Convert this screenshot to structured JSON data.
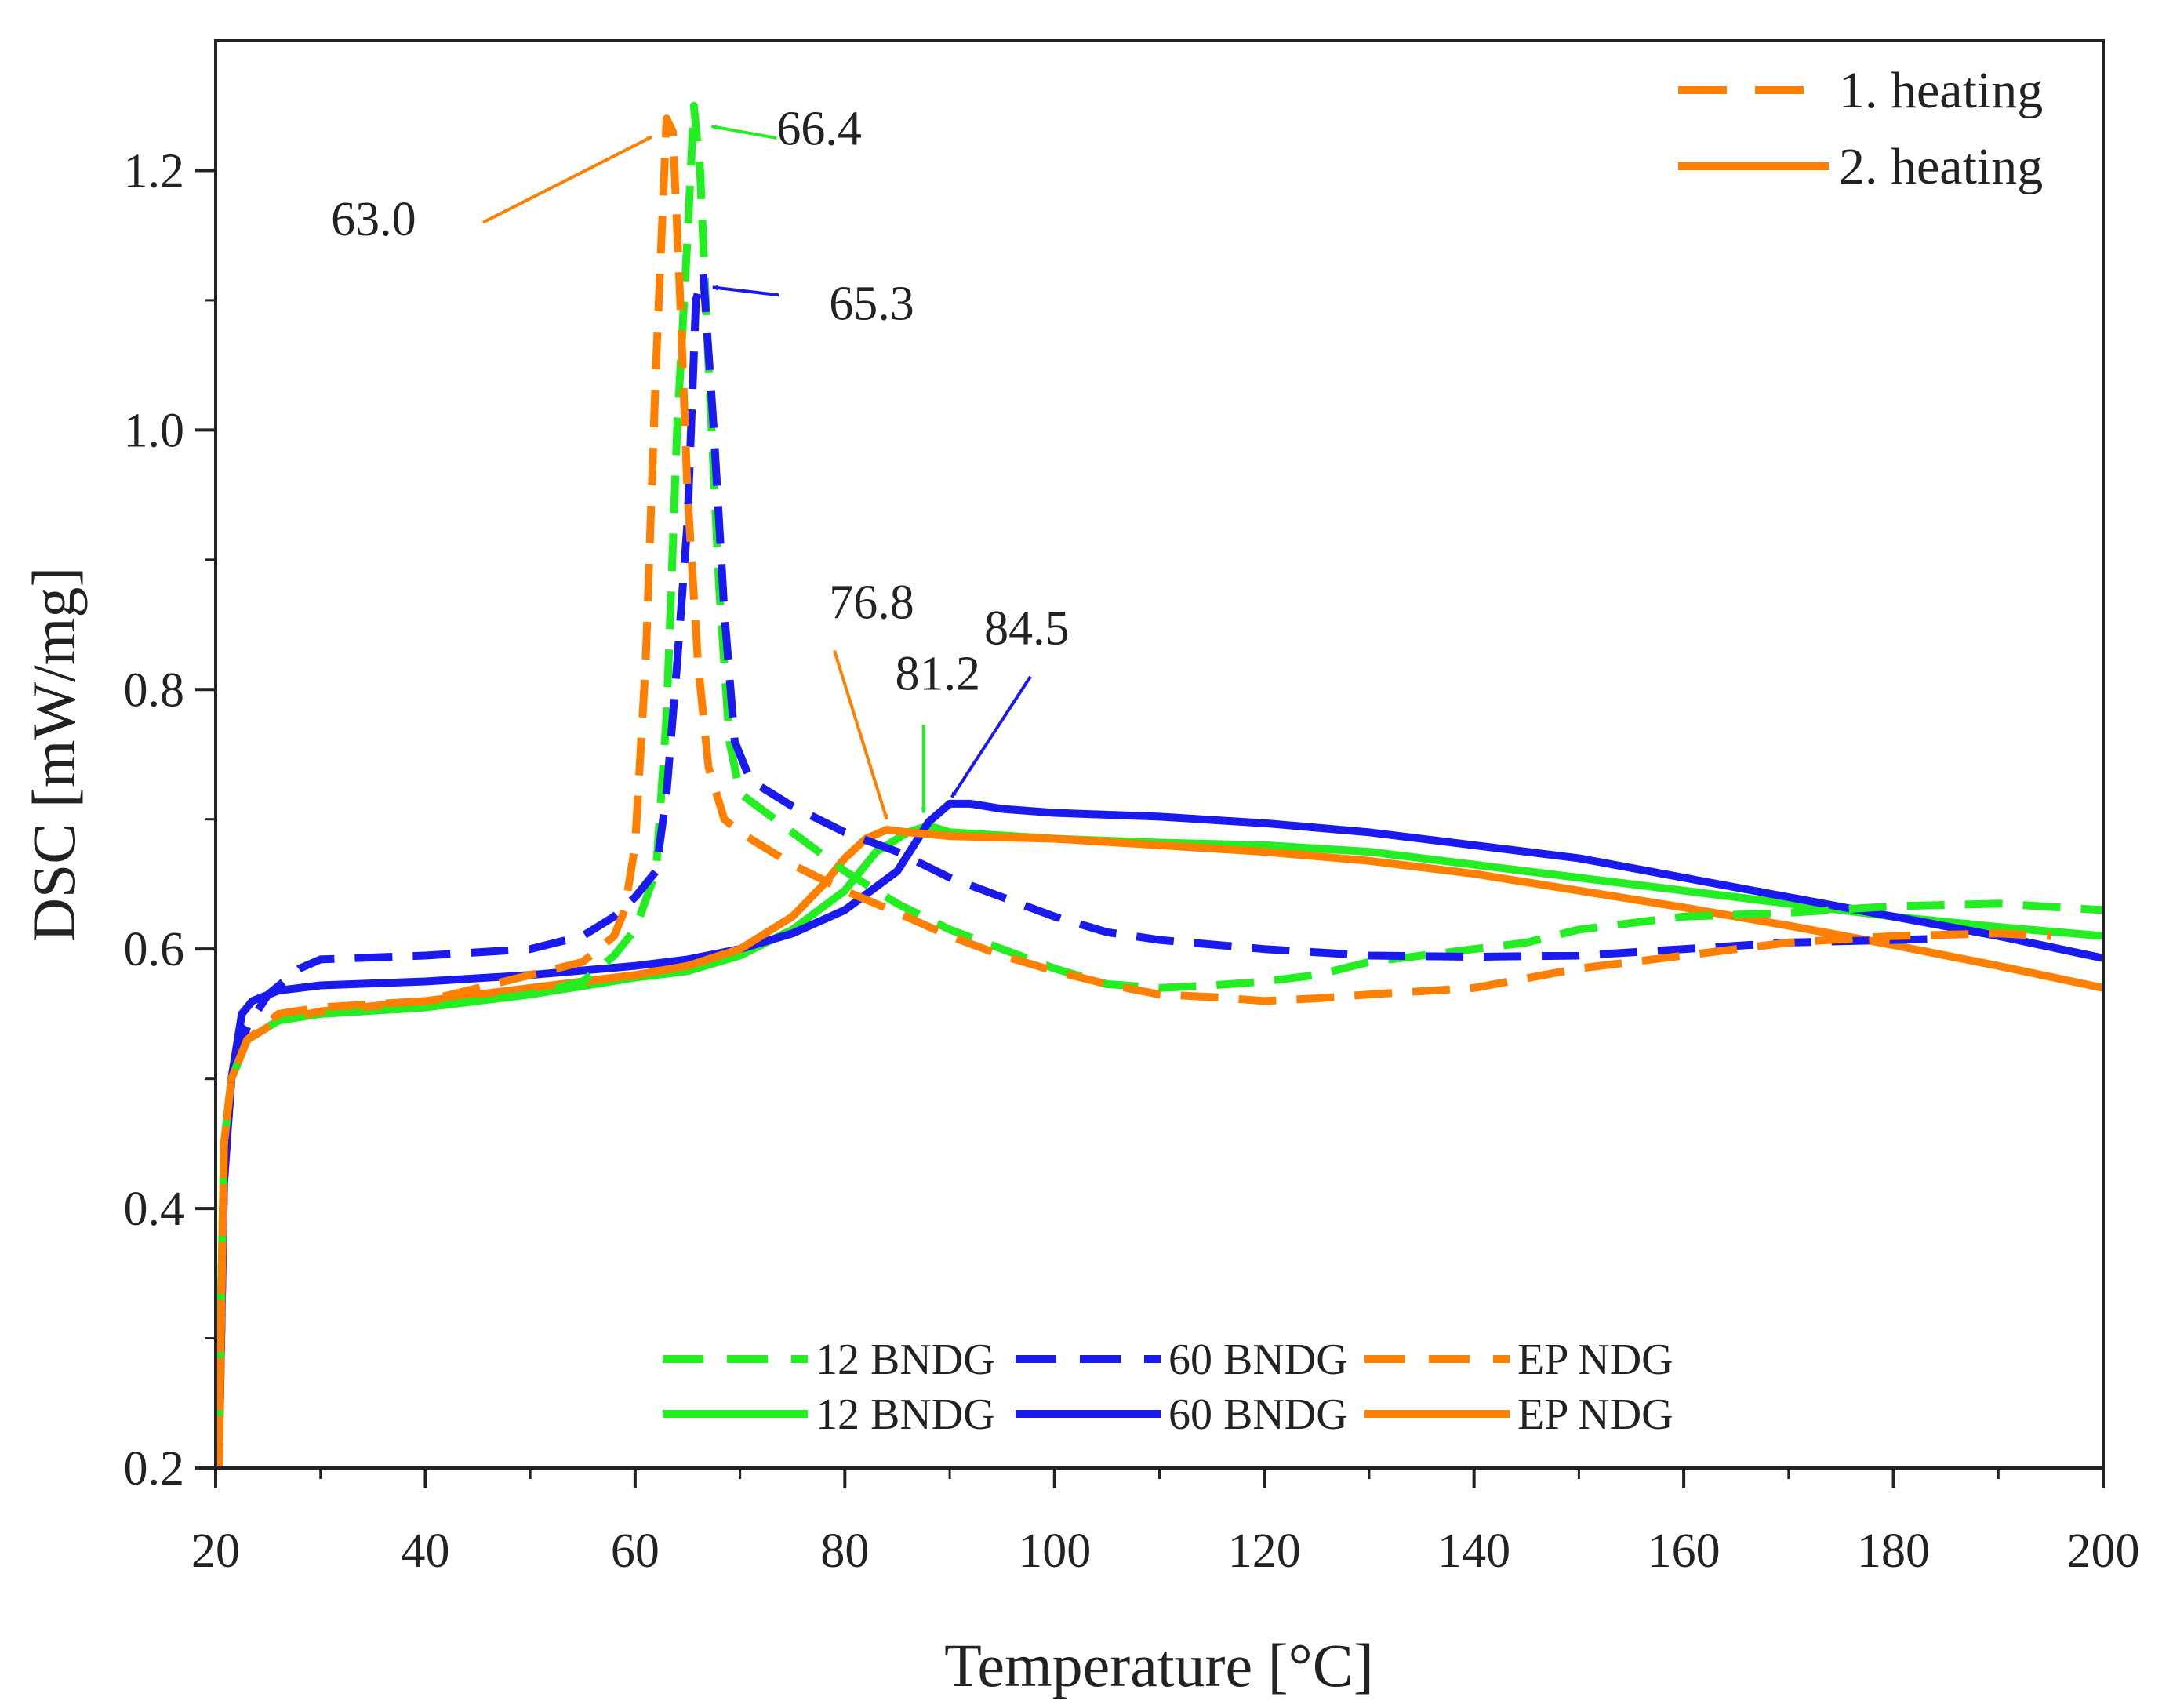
{
  "chart_data": {
    "type": "line",
    "title": "",
    "xlabel": "Temperature [°C]",
    "ylabel": "DSC [mW/mg]",
    "xlim": [
      20,
      200
    ],
    "ylim": [
      0.2,
      1.3
    ],
    "x_ticks": [
      20,
      40,
      60,
      80,
      100,
      120,
      140,
      160,
      180,
      200
    ],
    "x_tick_labels": [
      "20",
      "40",
      "60",
      "80",
      "100",
      "120",
      "140",
      "160",
      "180",
      "200"
    ],
    "y_ticks": [
      0.2,
      0.4,
      0.6,
      0.8,
      1.0,
      1.2
    ],
    "y_tick_labels": [
      "0.2",
      "0.4",
      "0.6",
      "0.8",
      "1.0",
      "1.2"
    ],
    "grid": false,
    "style_legend": {
      "placement": "top-right",
      "items": [
        {
          "label": "1. heating",
          "dash": "dashed",
          "color": "#ff8000"
        },
        {
          "label": "2. heating",
          "dash": "solid",
          "color": "#ff8000"
        }
      ]
    },
    "series_legend": {
      "placement": "bottom-center",
      "rows": [
        [
          "12 BNDG",
          "60 BNDG",
          "EP NDG"
        ],
        [
          "12 BNDG",
          "60 BNDG",
          "EP NDG"
        ]
      ]
    },
    "series": [
      {
        "name": "12 BNDG",
        "heating": "1. heating",
        "color": "#22ee22",
        "dash": "dashed",
        "points": [
          [
            20.3,
            0.24
          ],
          [
            20.8,
            0.45
          ],
          [
            21.5,
            0.5
          ],
          [
            23,
            0.53
          ],
          [
            26,
            0.545
          ],
          [
            30,
            0.55
          ],
          [
            40,
            0.555
          ],
          [
            50,
            0.565
          ],
          [
            55,
            0.575
          ],
          [
            58,
            0.595
          ],
          [
            60,
            0.615
          ],
          [
            62,
            0.66
          ],
          [
            63,
            0.78
          ],
          [
            64,
            1.0
          ],
          [
            65,
            1.15
          ],
          [
            65.6,
            1.25
          ],
          [
            66.2,
            1.2
          ],
          [
            67,
            1.05
          ],
          [
            68,
            0.88
          ],
          [
            69,
            0.76
          ],
          [
            70,
            0.72
          ],
          [
            75,
            0.69
          ],
          [
            80,
            0.66
          ],
          [
            85,
            0.635
          ],
          [
            90,
            0.615
          ],
          [
            95,
            0.6
          ],
          [
            100,
            0.585
          ],
          [
            105,
            0.573
          ],
          [
            110,
            0.57
          ],
          [
            115,
            0.572
          ],
          [
            120,
            0.575
          ],
          [
            125,
            0.58
          ],
          [
            130,
            0.59
          ],
          [
            135,
            0.595
          ],
          [
            140,
            0.6
          ],
          [
            145,
            0.605
          ],
          [
            150,
            0.615
          ],
          [
            155,
            0.62
          ],
          [
            160,
            0.625
          ],
          [
            170,
            0.628
          ],
          [
            180,
            0.633
          ],
          [
            190,
            0.635
          ],
          [
            200,
            0.63
          ]
        ]
      },
      {
        "name": "60 BNDG",
        "heating": "1. heating",
        "color": "#1a1aee",
        "dash": "dashed",
        "points": [
          [
            20.3,
            0.2
          ],
          [
            20.8,
            0.42
          ],
          [
            21.5,
            0.5
          ],
          [
            23,
            0.54
          ],
          [
            25,
            0.565
          ],
          [
            28,
            0.585
          ],
          [
            30,
            0.592
          ],
          [
            40,
            0.595
          ],
          [
            50,
            0.6
          ],
          [
            55,
            0.61
          ],
          [
            58,
            0.625
          ],
          [
            60,
            0.64
          ],
          [
            62,
            0.66
          ],
          [
            63,
            0.72
          ],
          [
            64,
            0.82
          ],
          [
            65,
            0.93
          ],
          [
            65.8,
            1.1
          ],
          [
            66.5,
            1.12
          ],
          [
            67.5,
            1.0
          ],
          [
            68.5,
            0.86
          ],
          [
            69.5,
            0.76
          ],
          [
            71,
            0.73
          ],
          [
            75,
            0.71
          ],
          [
            80,
            0.69
          ],
          [
            85,
            0.675
          ],
          [
            90,
            0.655
          ],
          [
            95,
            0.64
          ],
          [
            100,
            0.625
          ],
          [
            105,
            0.613
          ],
          [
            110,
            0.607
          ],
          [
            120,
            0.6
          ],
          [
            130,
            0.595
          ],
          [
            140,
            0.594
          ],
          [
            150,
            0.595
          ],
          [
            160,
            0.6
          ],
          [
            170,
            0.605
          ],
          [
            180,
            0.607
          ],
          [
            185,
            0.608
          ]
        ]
      },
      {
        "name": "EP NDG",
        "heating": "1. heating",
        "color": "#ff8000",
        "dash": "dashed",
        "points": [
          [
            20.3,
            0.2
          ],
          [
            20.8,
            0.45
          ],
          [
            21.5,
            0.5
          ],
          [
            23,
            0.53
          ],
          [
            26,
            0.55
          ],
          [
            30,
            0.555
          ],
          [
            40,
            0.56
          ],
          [
            50,
            0.58
          ],
          [
            55,
            0.59
          ],
          [
            58,
            0.61
          ],
          [
            59,
            0.63
          ],
          [
            60,
            0.68
          ],
          [
            61,
            0.82
          ],
          [
            62,
            1.05
          ],
          [
            63,
            1.24
          ],
          [
            63.6,
            1.23
          ],
          [
            64.3,
            1.1
          ],
          [
            65,
            0.95
          ],
          [
            66,
            0.82
          ],
          [
            67,
            0.74
          ],
          [
            68.5,
            0.7
          ],
          [
            70,
            0.69
          ],
          [
            75,
            0.665
          ],
          [
            80,
            0.645
          ],
          [
            85,
            0.628
          ],
          [
            90,
            0.61
          ],
          [
            95,
            0.595
          ],
          [
            100,
            0.583
          ],
          [
            105,
            0.573
          ],
          [
            110,
            0.565
          ],
          [
            115,
            0.563
          ],
          [
            120,
            0.56
          ],
          [
            125,
            0.562
          ],
          [
            130,
            0.565
          ],
          [
            140,
            0.57
          ],
          [
            150,
            0.585
          ],
          [
            160,
            0.595
          ],
          [
            170,
            0.605
          ],
          [
            180,
            0.61
          ],
          [
            190,
            0.612
          ],
          [
            195,
            0.61
          ]
        ]
      },
      {
        "name": "12 BNDG",
        "heating": "2. heating",
        "color": "#22ee22",
        "dash": "solid",
        "points": [
          [
            20.3,
            0.24
          ],
          [
            20.8,
            0.45
          ],
          [
            21.5,
            0.5
          ],
          [
            23,
            0.53
          ],
          [
            26,
            0.545
          ],
          [
            30,
            0.55
          ],
          [
            40,
            0.555
          ],
          [
            50,
            0.565
          ],
          [
            60,
            0.578
          ],
          [
            65,
            0.583
          ],
          [
            70,
            0.595
          ],
          [
            75,
            0.615
          ],
          [
            80,
            0.645
          ],
          [
            83,
            0.675
          ],
          [
            86,
            0.69
          ],
          [
            88,
            0.695
          ],
          [
            90,
            0.69
          ],
          [
            100,
            0.685
          ],
          [
            110,
            0.682
          ],
          [
            120,
            0.68
          ],
          [
            130,
            0.675
          ],
          [
            140,
            0.665
          ],
          [
            150,
            0.655
          ],
          [
            160,
            0.645
          ],
          [
            170,
            0.635
          ],
          [
            180,
            0.625
          ],
          [
            190,
            0.617
          ],
          [
            200,
            0.61
          ]
        ]
      },
      {
        "name": "60 BNDG",
        "heating": "2. heating",
        "color": "#1a1aee",
        "dash": "solid",
        "points": [
          [
            20.3,
            0.2
          ],
          [
            20.8,
            0.42
          ],
          [
            21.5,
            0.5
          ],
          [
            22.5,
            0.55
          ],
          [
            23.5,
            0.56
          ],
          [
            26,
            0.568
          ],
          [
            30,
            0.572
          ],
          [
            40,
            0.575
          ],
          [
            50,
            0.58
          ],
          [
            60,
            0.587
          ],
          [
            65,
            0.592
          ],
          [
            70,
            0.6
          ],
          [
            75,
            0.612
          ],
          [
            80,
            0.63
          ],
          [
            85,
            0.66
          ],
          [
            88,
            0.698
          ],
          [
            90,
            0.712
          ],
          [
            92,
            0.712
          ],
          [
            95,
            0.708
          ],
          [
            100,
            0.705
          ],
          [
            110,
            0.702
          ],
          [
            120,
            0.697
          ],
          [
            130,
            0.69
          ],
          [
            140,
            0.68
          ],
          [
            150,
            0.67
          ],
          [
            160,
            0.655
          ],
          [
            170,
            0.64
          ],
          [
            180,
            0.625
          ],
          [
            190,
            0.61
          ],
          [
            200,
            0.593
          ]
        ]
      },
      {
        "name": "EP NDG",
        "heating": "2. heating",
        "color": "#ff8000",
        "dash": "solid",
        "points": [
          [
            20.3,
            0.2
          ],
          [
            20.8,
            0.45
          ],
          [
            21.5,
            0.5
          ],
          [
            23,
            0.53
          ],
          [
            26,
            0.545
          ],
          [
            30,
            0.552
          ],
          [
            40,
            0.56
          ],
          [
            50,
            0.57
          ],
          [
            60,
            0.58
          ],
          [
            65,
            0.587
          ],
          [
            70,
            0.6
          ],
          [
            75,
            0.625
          ],
          [
            78,
            0.65
          ],
          [
            80,
            0.67
          ],
          [
            82,
            0.685
          ],
          [
            84,
            0.692
          ],
          [
            86,
            0.69
          ],
          [
            90,
            0.687
          ],
          [
            100,
            0.685
          ],
          [
            110,
            0.68
          ],
          [
            120,
            0.675
          ],
          [
            130,
            0.668
          ],
          [
            140,
            0.658
          ],
          [
            150,
            0.645
          ],
          [
            160,
            0.632
          ],
          [
            170,
            0.618
          ],
          [
            180,
            0.603
          ],
          [
            190,
            0.587
          ],
          [
            200,
            0.57
          ]
        ]
      }
    ],
    "annotations": [
      {
        "text": "63.0",
        "color": "#ff8000",
        "label_at": [
          31,
          1.15
        ],
        "arrow_from": [
          45.5,
          1.16
        ],
        "arrow_to": [
          61.6,
          1.226
        ]
      },
      {
        "text": "66.4",
        "color": "#22ee22",
        "label_at": [
          73.5,
          1.22
        ],
        "arrow_from": [
          73.5,
          1.225
        ],
        "arrow_to": [
          67.3,
          1.234
        ]
      },
      {
        "text": "65.3",
        "color": "#1a1aee",
        "label_at": [
          78.5,
          1.085
        ],
        "arrow_from": [
          73.7,
          1.104
        ],
        "arrow_to": [
          67.4,
          1.11
        ]
      },
      {
        "text": "76.8",
        "color": "#ff8000",
        "label_at": [
          78.5,
          0.855
        ],
        "arrow_from": [
          79,
          0.83
        ],
        "arrow_to": [
          84,
          0.7
        ]
      },
      {
        "text": "81.2",
        "color": "#22ee22",
        "label_at": [
          84.8,
          0.8
        ],
        "arrow_from": [
          87.5,
          0.773
        ],
        "arrow_to": [
          87.5,
          0.705
        ]
      },
      {
        "text": "84.5",
        "color": "#1a1aee",
        "label_at": [
          93.3,
          0.835
        ],
        "arrow_from": [
          97.7,
          0.81
        ],
        "arrow_to": [
          90.2,
          0.717
        ]
      }
    ]
  }
}
